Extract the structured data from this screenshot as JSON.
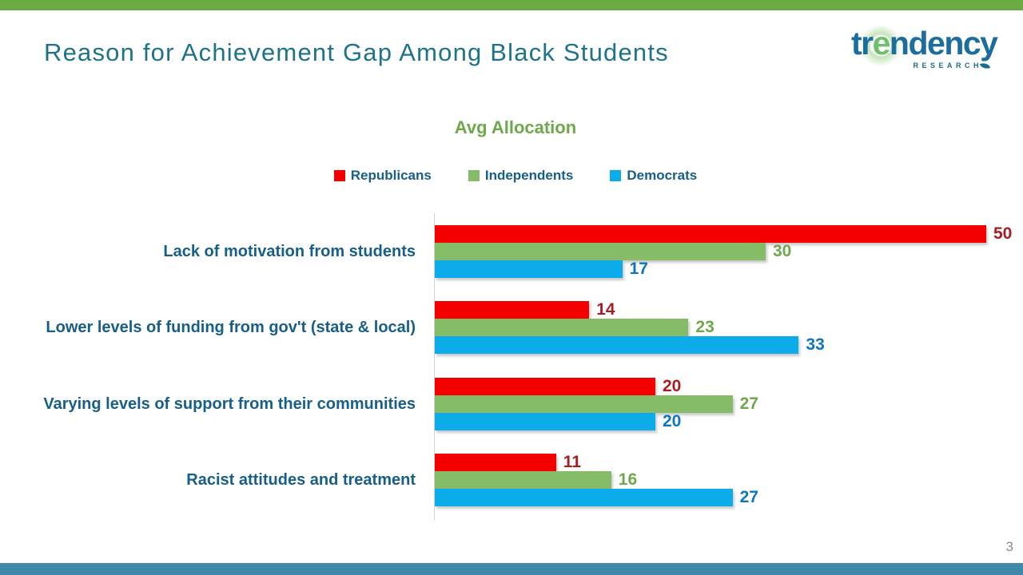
{
  "slide": {
    "title": "Reason for Achievement Gap Among Black Students",
    "page_number": "3"
  },
  "logo": {
    "brand_pre": "tr",
    "brand_accent": "e",
    "brand_post": "ndency",
    "tagline": "RESEARCH"
  },
  "colors": {
    "top_accent_bar": "#6BAB46",
    "bottom_accent_bar": "#4189A9",
    "slide_title_text": "#1E7389",
    "chart_text": "#175E88",
    "chart_title_text": "#6FA84C",
    "axis_line": "#D5D5D5",
    "page_number_text": "#8A8A8A",
    "logo_blue": "#1B6D9E",
    "logo_green": "#6FBE6E"
  },
  "chart_data": {
    "type": "bar",
    "orientation": "horizontal",
    "title": "Avg Allocation",
    "legend_position": "top",
    "grid": false,
    "value_labels": true,
    "xlim": [
      0,
      52
    ],
    "categories": [
      "Lack of motivation from students",
      "Lower levels of funding from gov't (state & local)",
      "Varying levels of support from their communities",
      "Racist attitudes and treatment"
    ],
    "series": [
      {
        "name": "Republicans",
        "color": "#F40000",
        "label_color": "#A61E24",
        "values": [
          50,
          14,
          20,
          11
        ]
      },
      {
        "name": "Independents",
        "color": "#86BC68",
        "label_color": "#6FA84C",
        "values": [
          30,
          23,
          27,
          16
        ]
      },
      {
        "name": "Democrats",
        "color": "#0BACE9",
        "label_color": "#0E76BC",
        "values": [
          17,
          33,
          20,
          27
        ]
      }
    ]
  }
}
